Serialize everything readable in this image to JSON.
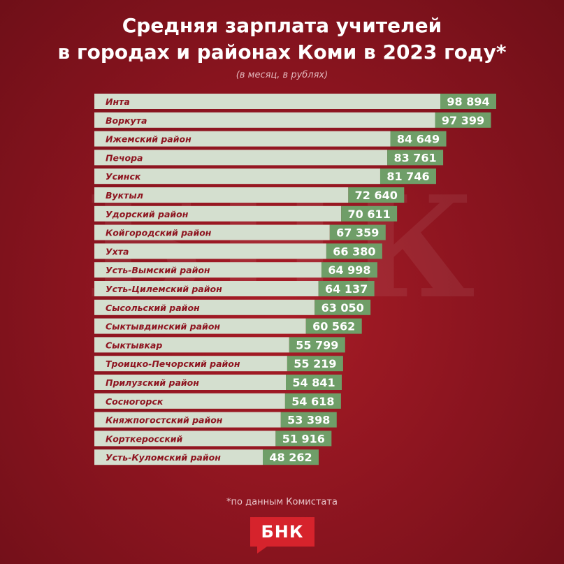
{
  "title_line1": "Средняя зарплата учителей",
  "title_line2": "в городах и районах Коми в 2023 году*",
  "subtitle": "(в месяц, в рублях)",
  "watermark": "БНК",
  "footnote": "*по данным Комистата",
  "logo": "БНК",
  "colors": {
    "label_bar": "#d4dfcf",
    "value_bar": "#6f9e68",
    "label_text": "#8e1520",
    "value_text": "#ffffff"
  },
  "chart_data": {
    "type": "bar",
    "orientation": "horizontal",
    "categories": [
      "Инта",
      "Воркута",
      "Ижемский район",
      "Печора",
      "Усинск",
      "Вуктыл",
      "Удорский район",
      "Койгородский район",
      "Ухта",
      "Усть-Вымский район",
      "Усть-Цилемский район",
      "Сысольский район",
      "Сыктывдинский район",
      "Сыктывкар",
      "Троицко-Печорский район",
      "Прилузский район",
      "Сосногорск",
      "Княжпогостский район",
      "Корткеросский",
      "Усть-Куломский район"
    ],
    "values": [
      98894,
      97399,
      84649,
      83761,
      81746,
      72640,
      70611,
      67359,
      66380,
      64998,
      64137,
      63050,
      60562,
      55799,
      55219,
      54841,
      54618,
      53398,
      51916,
      48262
    ],
    "value_labels": [
      "98 894",
      "97 399",
      "84 649",
      "83 761",
      "81 746",
      "72 640",
      "70 611",
      "67 359",
      "66 380",
      "64 998",
      "64 137",
      "63 050",
      "60 562",
      "55 799",
      "55 219",
      "54 841",
      "54 618",
      "53 398",
      "51 916",
      "48 262"
    ],
    "title": "Средняя зарплата учителей в городах и районах Коми в 2023 году*",
    "xlabel": "",
    "ylabel": "",
    "grid": false,
    "legend": "none"
  }
}
